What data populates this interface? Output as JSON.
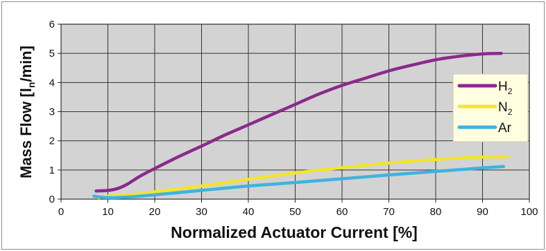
{
  "chart_data": {
    "type": "line",
    "xlabel": "Normalized Actuator Current [%]",
    "ylabel": "Mass Flow [l",
    "ylabel_sub": "n",
    "ylabel_tail": "/min]",
    "xlim": [
      0,
      100
    ],
    "ylim": [
      0,
      6
    ],
    "xticks": [
      0,
      10,
      20,
      30,
      40,
      50,
      60,
      70,
      80,
      90,
      100
    ],
    "yticks": [
      0,
      1,
      2,
      3,
      4,
      5,
      6
    ],
    "grid": true,
    "legend_position": "right",
    "series": [
      {
        "name": "H",
        "name_sub": "2",
        "color": "#8a2a8c",
        "x": [
          7.5,
          10,
          12,
          14,
          17,
          20,
          25,
          30,
          35,
          40,
          45,
          50,
          55,
          60,
          65,
          70,
          75,
          80,
          85,
          90,
          94
        ],
        "y": [
          0.28,
          0.3,
          0.36,
          0.5,
          0.8,
          1.05,
          1.45,
          1.82,
          2.2,
          2.55,
          2.9,
          3.25,
          3.6,
          3.9,
          4.15,
          4.4,
          4.6,
          4.78,
          4.9,
          4.98,
          5.0
        ]
      },
      {
        "name": "N",
        "name_sub": "2",
        "color": "#f2e530",
        "x": [
          8,
          10,
          15,
          20,
          30,
          40,
          50,
          60,
          70,
          80,
          90,
          95.5
        ],
        "y": [
          0.05,
          0.1,
          0.15,
          0.25,
          0.45,
          0.68,
          0.9,
          1.08,
          1.24,
          1.36,
          1.44,
          1.45
        ]
      },
      {
        "name": "Ar",
        "color": "#3fb3dd",
        "x": [
          7,
          10,
          15,
          20,
          30,
          40,
          50,
          60,
          70,
          80,
          90,
          94.5
        ],
        "y": [
          0.1,
          0.05,
          0.08,
          0.15,
          0.3,
          0.45,
          0.57,
          0.7,
          0.83,
          0.95,
          1.07,
          1.12
        ]
      }
    ]
  }
}
